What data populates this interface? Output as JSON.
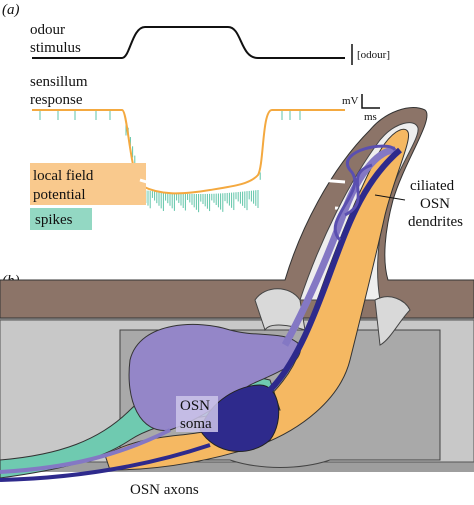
{
  "panel_a": {
    "label": "(a)",
    "stimulus_label": [
      "odour",
      "stimulus"
    ],
    "stimulus_scale": "[odour]",
    "response_label": [
      "sensillum",
      "response"
    ],
    "voltage_unit": "mV",
    "time_unit": "ms",
    "legend": {
      "lfp": [
        "local field",
        "potential"
      ],
      "spikes": "spikes"
    }
  },
  "panel_b": {
    "label": "(b)",
    "dendrites_label": [
      "ciliated",
      "OSN",
      "dendrites"
    ],
    "soma_label": [
      "OSN",
      "soma"
    ],
    "axons_label": "OSN axons"
  }
}
